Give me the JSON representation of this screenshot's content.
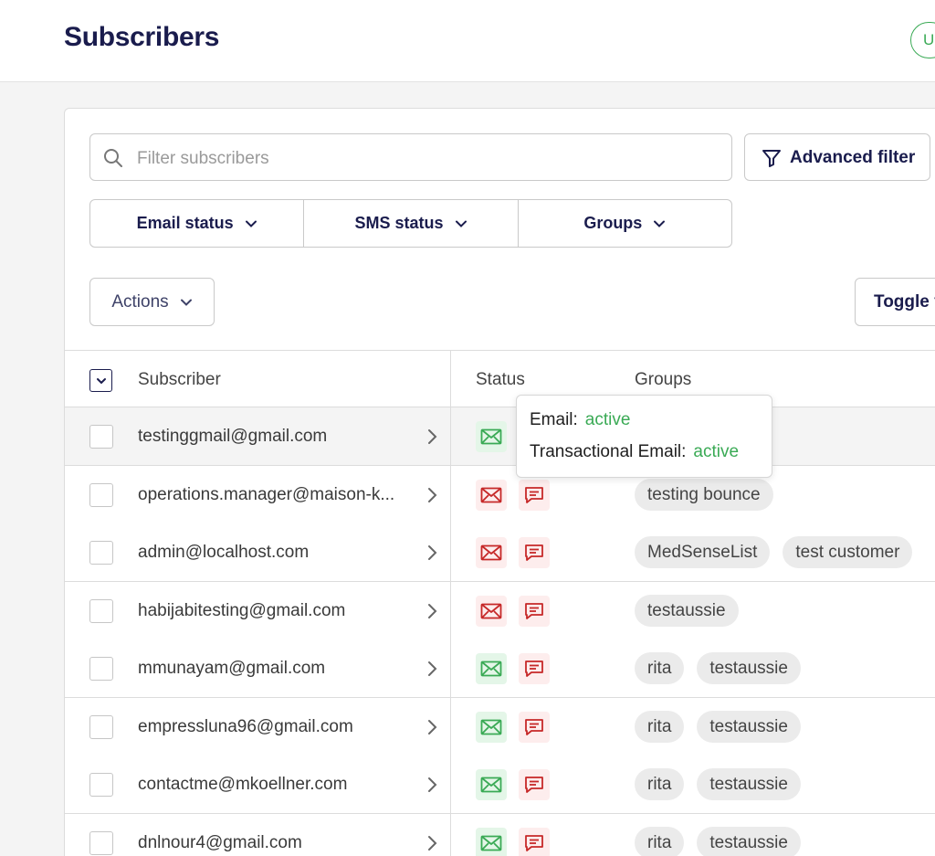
{
  "header": {
    "title": "Subscribers",
    "avatar_letter": "U"
  },
  "search": {
    "placeholder": "Filter subscribers"
  },
  "advanced_filter": {
    "label": "Advanced filter"
  },
  "filters": [
    {
      "label": "Email status"
    },
    {
      "label": "SMS status"
    },
    {
      "label": "Groups"
    }
  ],
  "actions": {
    "label": "Actions"
  },
  "toggle": {
    "label": "Toggle f"
  },
  "table": {
    "columns": {
      "subscriber": "Subscriber",
      "status": "Status",
      "groups": "Groups"
    },
    "rows": [
      {
        "email": "testinggmail@gmail.com",
        "email_status": "green",
        "sms_status": "none",
        "groups": []
      },
      {
        "email": "operations.manager@maison-k...",
        "email_status": "red",
        "sms_status": "red",
        "groups": [
          "testing bounce"
        ]
      },
      {
        "email": "admin@localhost.com",
        "email_status": "red",
        "sms_status": "red",
        "groups": [
          "MedSenseList",
          "test customer"
        ]
      },
      {
        "email": "habijabitesting@gmail.com",
        "email_status": "red",
        "sms_status": "red",
        "groups": [
          "testaussie"
        ]
      },
      {
        "email": "mmunayam@gmail.com",
        "email_status": "green",
        "sms_status": "red",
        "groups": [
          "rita",
          "testaussie"
        ]
      },
      {
        "email": "empressluna96@gmail.com",
        "email_status": "green",
        "sms_status": "red",
        "groups": [
          "rita",
          "testaussie"
        ]
      },
      {
        "email": "contactme@mkoellner.com",
        "email_status": "green",
        "sms_status": "red",
        "groups": [
          "rita",
          "testaussie"
        ]
      },
      {
        "email": "dnlnour4@gmail.com",
        "email_status": "green",
        "sms_status": "red",
        "groups": [
          "rita",
          "testaussie"
        ]
      }
    ]
  },
  "tooltip": {
    "email_label": "Email:",
    "email_value": "active",
    "transactional_label": "Transactional Email:",
    "transactional_value": "active"
  },
  "colors": {
    "brand": "#1a1c4d",
    "active": "#3aaa55",
    "inactive": "#c62828"
  }
}
